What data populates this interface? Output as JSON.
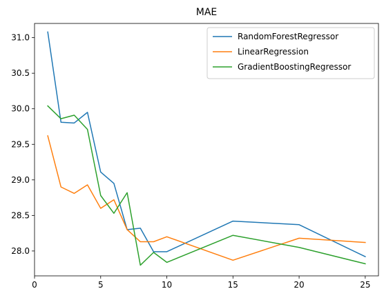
{
  "chart_data": {
    "type": "line",
    "title": "MAE",
    "xlabel": "",
    "ylabel": "",
    "xlim": [
      0,
      26
    ],
    "ylim": [
      27.65,
      31.2
    ],
    "xticks": [
      0,
      5,
      10,
      15,
      20,
      25
    ],
    "xtick_labels": [
      "0",
      "5",
      "10",
      "15",
      "20",
      "25"
    ],
    "yticks": [
      28.0,
      28.5,
      29.0,
      29.5,
      30.0,
      30.5,
      31.0
    ],
    "ytick_labels": [
      "28.0",
      "28.5",
      "29.0",
      "29.5",
      "30.0",
      "30.5",
      "31.0"
    ],
    "grid": false,
    "legend_position": "top-right",
    "series": [
      {
        "name": "RandomForestRegressor",
        "color": "#1f77b4",
        "x": [
          1,
          2,
          3,
          4,
          5,
          6,
          7,
          8,
          9,
          10,
          15,
          20,
          25
        ],
        "y": [
          31.08,
          29.81,
          29.8,
          29.95,
          29.11,
          28.95,
          28.3,
          28.32,
          27.99,
          27.99,
          28.42,
          28.37,
          27.92
        ]
      },
      {
        "name": "LinearRegression",
        "color": "#ff7f0e",
        "x": [
          1,
          2,
          3,
          4,
          5,
          6,
          7,
          8,
          9,
          10,
          15,
          20,
          25
        ],
        "y": [
          29.62,
          28.9,
          28.81,
          28.93,
          28.6,
          28.72,
          28.3,
          28.13,
          28.13,
          28.2,
          27.87,
          28.18,
          28.12
        ]
      },
      {
        "name": "GradientBoostingRegressor",
        "color": "#2ca02c",
        "x": [
          1,
          2,
          3,
          4,
          5,
          6,
          7,
          8,
          9,
          10,
          15,
          20,
          25
        ],
        "y": [
          30.04,
          29.86,
          29.91,
          29.71,
          28.78,
          28.53,
          28.82,
          27.8,
          27.98,
          27.84,
          28.22,
          28.05,
          27.82
        ]
      }
    ]
  }
}
